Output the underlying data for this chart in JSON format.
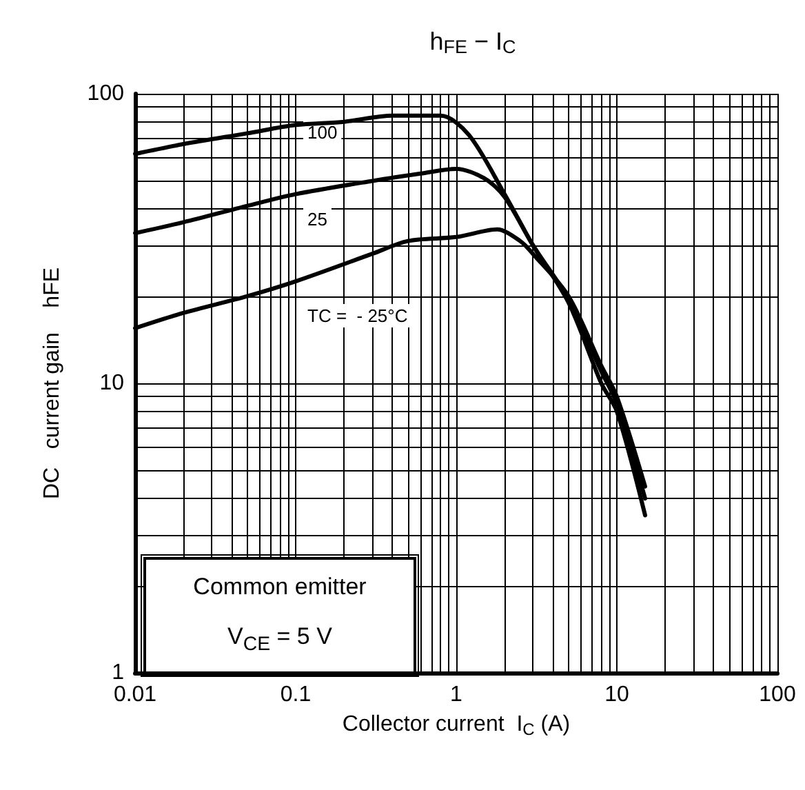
{
  "chart_data": {
    "type": "line",
    "title": "h$_{FE}$ − I$_{C}$",
    "xlabel": "Collector current  I$_{C}$ (A)",
    "ylabel": "DC   current gain    hFE",
    "log": "xy",
    "grid": true,
    "marker": "none",
    "line_style": "solid",
    "xlim": [
      0.01,
      100
    ],
    "ylim": [
      1,
      100
    ],
    "xticks": [
      0.01,
      {
        "value": 0.02,
        "label": null
      },
      {
        "value": 0.03,
        "label": null
      },
      {
        "value": 0.04,
        "label": null
      },
      {
        "value": 0.05,
        "label": null
      },
      {
        "value": 0.06,
        "label": null
      },
      {
        "value": 0.07,
        "label": null
      },
      {
        "value": 0.08,
        "label": null
      },
      {
        "value": 0.09,
        "label": null
      },
      0.1,
      {
        "value": 0.2,
        "label": null
      },
      {
        "value": 0.3,
        "label": null
      },
      {
        "value": 0.4,
        "label": null
      },
      {
        "value": 0.5,
        "label": null
      },
      {
        "value": 0.6,
        "label": null
      },
      {
        "value": 0.7,
        "label": null
      },
      {
        "value": 0.8,
        "label": null
      },
      {
        "value": 0.9,
        "label": null
      },
      1,
      {
        "value": 2,
        "label": null
      },
      {
        "value": 3,
        "label": null
      },
      {
        "value": 4,
        "label": null
      },
      {
        "value": 5,
        "label": null
      },
      {
        "value": 6,
        "label": null
      },
      {
        "value": 7,
        "label": null
      },
      {
        "value": 8,
        "label": null
      },
      {
        "value": 9,
        "label": null
      },
      10,
      {
        "value": 20,
        "label": null
      },
      {
        "value": 30,
        "label": null
      },
      {
        "value": 40,
        "label": null
      },
      {
        "value": 50,
        "label": null
      },
      {
        "value": 60,
        "label": null
      },
      {
        "value": 70,
        "label": null
      },
      {
        "value": 80,
        "label": null
      },
      {
        "value": 90,
        "label": null
      },
      100
    ],
    "yticks": [
      1,
      {
        "value": 2,
        "label": null
      },
      {
        "value": 3,
        "label": null
      },
      {
        "value": 4,
        "label": null
      },
      {
        "value": 5,
        "label": null
      },
      {
        "value": 6,
        "label": null
      },
      {
        "value": 7,
        "label": null
      },
      {
        "value": 8,
        "label": null
      },
      {
        "value": 9,
        "label": null
      },
      10,
      {
        "value": 20,
        "label": null
      },
      {
        "value": 30,
        "label": null
      },
      {
        "value": 40,
        "label": null
      },
      {
        "value": 50,
        "label": null
      },
      {
        "value": 60,
        "label": null
      },
      {
        "value": 70,
        "label": null
      },
      {
        "value": 80,
        "label": null
      },
      {
        "value": 90,
        "label": null
      },
      100
    ],
    "series": [
      {
        "color": "#000000",
        "x": [
          0.01,
          0.02,
          0.05,
          0.1,
          0.2,
          0.4,
          0.8,
          1.2,
          2,
          3,
          5,
          8,
          10,
          15
        ],
        "values": [
          62,
          67,
          73,
          78,
          80,
          84,
          84,
          72,
          45,
          30,
          19,
          10,
          8,
          3.5
        ]
      },
      {
        "color": "#000000",
        "x": [
          0.01,
          0.02,
          0.05,
          0.1,
          0.3,
          0.6,
          1,
          1.5,
          2,
          3,
          5,
          8,
          10,
          15
        ],
        "values": [
          33,
          36,
          41,
          45,
          50,
          53,
          55,
          51,
          44,
          30,
          19.5,
          11,
          8.5,
          4.0
        ]
      },
      {
        "color": "#000000",
        "x": [
          0.01,
          0.02,
          0.05,
          0.1,
          0.3,
          0.5,
          1,
          1.8,
          2.5,
          3,
          5,
          8,
          10,
          15
        ],
        "values": [
          15.5,
          17.5,
          20,
          22.5,
          28,
          31,
          32,
          34,
          31,
          28,
          20,
          11.5,
          9,
          4.4
        ]
      }
    ],
    "annotations": [
      "100",
      "25",
      "TC =  - 25°C",
      "Common emitter",
      "V$_{CE}$ = 5 V"
    ]
  }
}
